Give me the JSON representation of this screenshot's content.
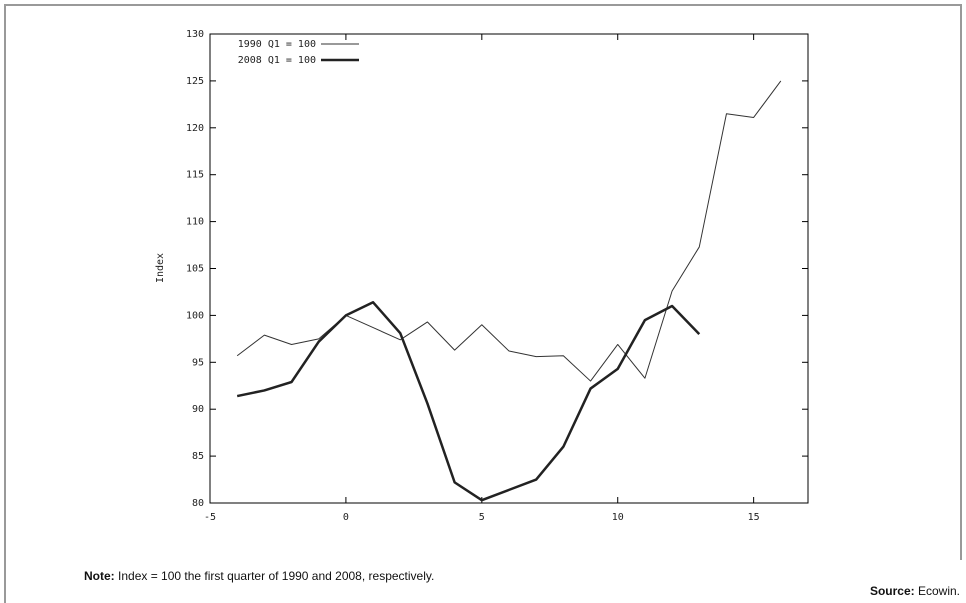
{
  "chart_data": {
    "type": "line",
    "y_label": "Index",
    "x": [
      -4,
      -3,
      -2,
      -1,
      0,
      1,
      2,
      3,
      4,
      5,
      6,
      7,
      8,
      9,
      10,
      11,
      12,
      13,
      14,
      15,
      16
    ],
    "series": [
      {
        "name": "1990 Q1 = 100",
        "color": "#333333",
        "width": 1,
        "values": [
          95.7,
          97.9,
          96.9,
          97.5,
          100,
          98.7,
          97.4,
          99.3,
          96.3,
          99.0,
          96.2,
          95.6,
          95.7,
          93.0,
          96.9,
          93.3,
          102.6,
          107.3,
          121.5,
          121.1,
          125.0
        ]
      },
      {
        "name": "2008 Q1 = 100",
        "color": "#222222",
        "width": 2.5,
        "values": [
          91.4,
          92.0,
          92.9,
          97.2,
          100,
          101.4,
          98.1,
          90.6,
          82.2,
          80.3,
          81.4,
          82.5,
          86.0,
          92.2,
          94.3,
          99.5,
          101.0,
          98.0,
          null,
          null,
          null
        ]
      }
    ],
    "xlim": [
      -5,
      17
    ],
    "ylim": [
      80,
      130
    ],
    "xticks": [
      -5,
      0,
      5,
      10,
      15
    ],
    "yticks": [
      80,
      85,
      90,
      95,
      100,
      105,
      110,
      115,
      120,
      125,
      130
    ],
    "legend": "top-left"
  },
  "note": {
    "label": "Note:",
    "text": "Index = 100 the first quarter of 1990 and 2008, respectively."
  },
  "source": {
    "label": "Source:",
    "text": "Ecowin."
  }
}
